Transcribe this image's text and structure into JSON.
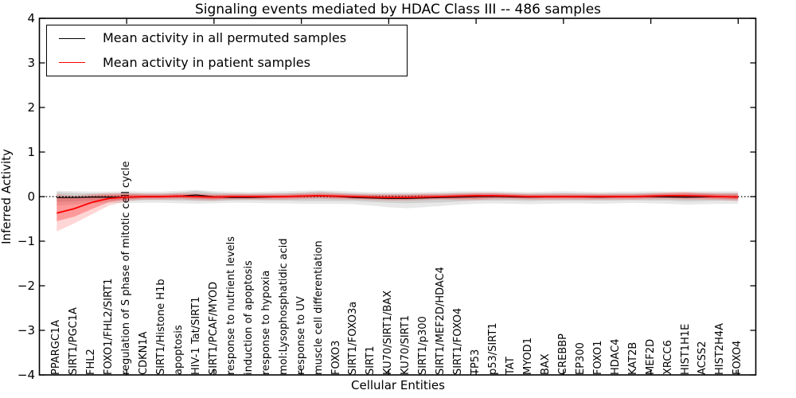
{
  "title": "Signaling events mediated by HDAC Class III -- 486 samples",
  "legend": {
    "items": [
      {
        "label": "Mean activity in all permuted samples",
        "color": "#000000"
      },
      {
        "label": "Mean activity in patient samples",
        "color": "#ff0000"
      }
    ]
  },
  "chart_data": {
    "type": "line",
    "title": "Signaling events mediated by HDAC Class III -- 486 samples",
    "xlabel": "Cellular Entities",
    "ylabel": "Inferred Activity",
    "ylim": [
      -4,
      4
    ],
    "grid": false,
    "legend_position": "upper left",
    "yticks": [
      4,
      3,
      2,
      1,
      0,
      -1,
      -2,
      -3,
      -4
    ],
    "ytick_labels": [
      "4",
      "3",
      "2",
      "1",
      "0",
      "−1",
      "−2",
      "−3",
      "−4"
    ],
    "x_major_tick_indices": [
      4,
      9,
      14,
      19,
      24,
      29,
      34,
      39
    ],
    "zero_line": {
      "y": 0,
      "style": "dotted",
      "color": "#000000"
    },
    "categories": [
      "PPARGC1A",
      "SIRT1/PGC1A",
      "FHL2",
      "FOXO1/FHL2/SIRT1",
      "regulation of S phase of mitotic cell cycle",
      "CDKN1A",
      "SIRT1/Histone H1b",
      "apoptosis",
      "HIV-1 Tat/SIRT1",
      "SIRT1/PCAF/MYOD",
      "response to nutrient levels",
      "induction of apoptosis",
      "response to hypoxia",
      "mol:Lysophosphatidic acid",
      "response to UV",
      "muscle cell differentiation",
      "FOXO3",
      "SIRT1/FOXO3a",
      "SIRT1",
      "KU70/SIRT1/BAX",
      "KU70/SIRT1",
      "SIRT1/p300",
      "SIRT1/MEF2D/HDAC4",
      "SIRT1/FOXO4",
      "TP53",
      "p53/SIRT1",
      "TAT",
      "MYOD1",
      "BAX",
      "CREBBP",
      "EP300",
      "FOXO1",
      "HDAC4",
      "KAT2B",
      "MEF2D",
      "XRCC6",
      "HIST1H1E",
      "ACSS2",
      "HIST2H4A",
      "FOXO4"
    ],
    "series": [
      {
        "name": "Mean activity in all permuted samples",
        "color": "#000000",
        "values": [
          -0.02,
          -0.02,
          -0.01,
          -0.01,
          -0.01,
          -0.005,
          0,
          0.01,
          0.035,
          -0.005,
          -0.02,
          -0.02,
          -0.01,
          0,
          0.01,
          0.02,
          0.005,
          -0.02,
          -0.03,
          -0.04,
          -0.04,
          -0.03,
          -0.02,
          -0.01,
          0,
          0.005,
          -0.005,
          -0.01,
          -0.005,
          0,
          -0.005,
          -0.01,
          -0.005,
          0,
          0,
          -0.005,
          -0.01,
          -0.005,
          0,
          -0.01
        ]
      },
      {
        "name": "Mean activity in patient samples",
        "color": "#ff0000",
        "values": [
          -0.37,
          -0.27,
          -0.13,
          -0.04,
          -0.01,
          0,
          0,
          0.01,
          0,
          -0.01,
          0,
          0,
          0,
          0,
          0.01,
          0.02,
          0.01,
          0,
          -0.01,
          -0.02,
          -0.02,
          -0.01,
          0,
          0.01,
          0.02,
          0.02,
          0.01,
          0,
          0,
          0,
          0,
          0,
          0,
          0,
          0.01,
          0.02,
          0.02,
          0.01,
          0,
          -0.01
        ]
      }
    ],
    "bands": [
      {
        "name": "permuted-range-outer",
        "color": "rgba(0,0,0,0.09)",
        "upper": [
          0.13,
          0.12,
          0.11,
          0.11,
          0.12,
          0.11,
          0.11,
          0.13,
          0.15,
          0.12,
          0.11,
          0.1,
          0.11,
          0.12,
          0.13,
          0.14,
          0.13,
          0.11,
          0.1,
          0.1,
          0.1,
          0.1,
          0.11,
          0.12,
          0.12,
          0.12,
          0.11,
          0.1,
          0.11,
          0.12,
          0.11,
          0.1,
          0.11,
          0.11,
          0.12,
          0.11,
          0.11,
          0.12,
          0.12,
          0.12
        ],
        "lower": [
          -0.2,
          -0.18,
          -0.15,
          -0.14,
          -0.15,
          -0.14,
          -0.14,
          -0.15,
          -0.16,
          -0.15,
          -0.14,
          -0.14,
          -0.15,
          -0.15,
          -0.16,
          -0.16,
          -0.16,
          -0.17,
          -0.2,
          -0.24,
          -0.26,
          -0.24,
          -0.21,
          -0.18,
          -0.16,
          -0.15,
          -0.16,
          -0.17,
          -0.16,
          -0.15,
          -0.15,
          -0.16,
          -0.15,
          -0.14,
          -0.15,
          -0.16,
          -0.18,
          -0.17,
          -0.16,
          -0.16
        ]
      },
      {
        "name": "permuted-std-inner",
        "color": "rgba(0,0,0,0.10)",
        "upper": [
          0.1,
          0.08,
          0.07,
          0.07,
          0.08,
          0.07,
          0.07,
          0.09,
          0.13,
          0.09,
          0.07,
          0.06,
          0.07,
          0.08,
          0.09,
          0.12,
          0.09,
          0.07,
          0.06,
          0.06,
          0.06,
          0.06,
          0.07,
          0.08,
          0.08,
          0.08,
          0.07,
          0.06,
          0.07,
          0.08,
          0.07,
          0.06,
          0.07,
          0.07,
          0.08,
          0.07,
          0.07,
          0.08,
          0.08,
          0.08
        ],
        "lower": [
          -0.12,
          -0.11,
          -0.09,
          -0.08,
          -0.09,
          -0.08,
          -0.08,
          -0.09,
          -0.1,
          -0.1,
          -0.09,
          -0.08,
          -0.09,
          -0.09,
          -0.1,
          -0.1,
          -0.1,
          -0.1,
          -0.12,
          -0.14,
          -0.15,
          -0.14,
          -0.13,
          -0.11,
          -0.09,
          -0.09,
          -0.09,
          -0.1,
          -0.09,
          -0.09,
          -0.09,
          -0.09,
          -0.09,
          -0.08,
          -0.09,
          -0.09,
          -0.11,
          -0.1,
          -0.09,
          -0.09
        ]
      },
      {
        "name": "patient-range-outer",
        "color": "rgba(255,0,0,0.16)",
        "upper": [
          0.06,
          0.02,
          0.06,
          0.08,
          0.08,
          0.07,
          0.07,
          0.08,
          0.08,
          0.06,
          0.07,
          0.07,
          0.07,
          0.07,
          0.08,
          0.09,
          0.08,
          0.07,
          0.06,
          0.06,
          0.06,
          0.07,
          0.07,
          0.08,
          0.09,
          0.09,
          0.08,
          0.07,
          0.07,
          0.07,
          0.07,
          0.07,
          0.07,
          0.07,
          0.08,
          0.1,
          0.11,
          0.09,
          0.08,
          0.08
        ],
        "lower": [
          -0.78,
          -0.6,
          -0.4,
          -0.2,
          -0.1,
          -0.07,
          -0.07,
          -0.06,
          -0.08,
          -0.09,
          -0.07,
          -0.07,
          -0.07,
          -0.07,
          -0.06,
          -0.05,
          -0.06,
          -0.07,
          -0.08,
          -0.09,
          -0.09,
          -0.08,
          -0.07,
          -0.08,
          -0.08,
          -0.06,
          -0.06,
          -0.07,
          -0.07,
          -0.07,
          -0.07,
          -0.07,
          -0.07,
          -0.07,
          -0.06,
          -0.06,
          -0.07,
          -0.07,
          -0.08,
          -0.1
        ]
      },
      {
        "name": "patient-std-inner",
        "color": "rgba(255,0,0,0.28)",
        "upper": [
          0.0,
          -0.03,
          0.02,
          0.04,
          0.05,
          0.04,
          0.04,
          0.05,
          0.05,
          0.03,
          0.04,
          0.04,
          0.04,
          0.04,
          0.05,
          0.06,
          0.05,
          0.04,
          0.03,
          0.03,
          0.03,
          0.04,
          0.04,
          0.05,
          0.06,
          0.06,
          0.05,
          0.04,
          0.04,
          0.04,
          0.04,
          0.04,
          0.04,
          0.04,
          0.05,
          0.07,
          0.08,
          0.06,
          0.05,
          0.05
        ],
        "lower": [
          -0.55,
          -0.45,
          -0.28,
          -0.12,
          -0.06,
          -0.04,
          -0.04,
          -0.03,
          -0.05,
          -0.06,
          -0.04,
          -0.04,
          -0.04,
          -0.04,
          -0.03,
          -0.02,
          -0.03,
          -0.04,
          -0.05,
          -0.06,
          -0.06,
          -0.05,
          -0.04,
          -0.05,
          -0.05,
          -0.03,
          -0.03,
          -0.04,
          -0.04,
          -0.04,
          -0.04,
          -0.04,
          -0.04,
          -0.04,
          -0.03,
          -0.03,
          -0.04,
          -0.04,
          -0.05,
          -0.06
        ]
      }
    ]
  }
}
